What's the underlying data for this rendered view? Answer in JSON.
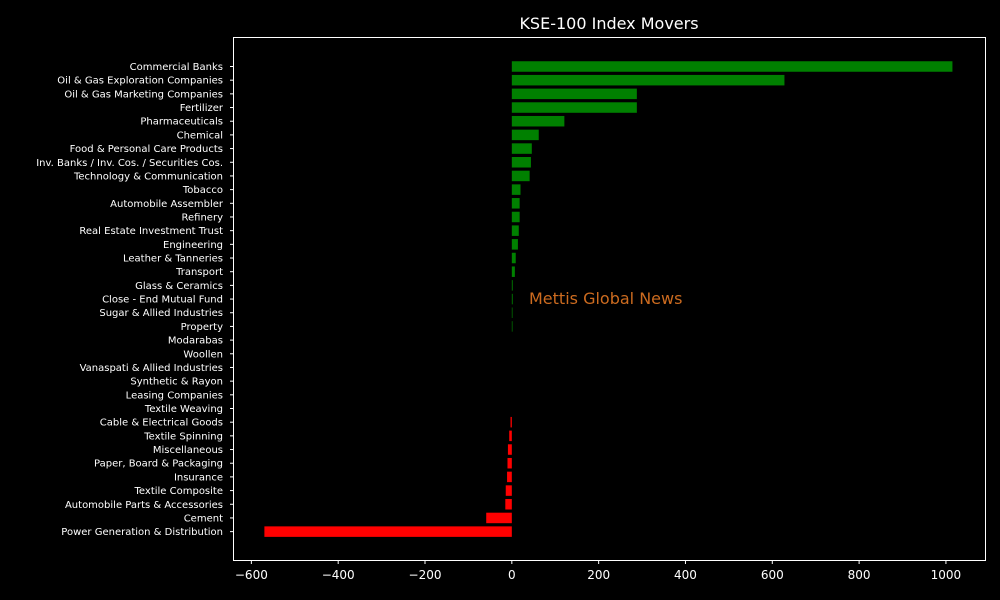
{
  "chart_data": {
    "type": "bar",
    "orientation": "horizontal",
    "title": "KSE-100 Index Movers",
    "xlabel": "",
    "ylabel": "",
    "xlim": [
      -640,
      1090
    ],
    "x_ticks": [
      -600,
      -400,
      -200,
      0,
      200,
      400,
      600,
      800,
      1000
    ],
    "grid": false,
    "positive_color": "#008000",
    "negative_color": "#ff0000",
    "watermark": "Mettis Global News",
    "categories": [
      "Commercial Banks",
      "Oil & Gas Exploration Companies",
      "Oil & Gas Marketing Companies",
      "Fertilizer",
      "Pharmaceuticals",
      "Chemical",
      "Food & Personal Care Products",
      "Inv. Banks / Inv. Cos. / Securities Cos.",
      "Technology & Communication",
      "Tobacco",
      "Automobile Assembler",
      "Refinery",
      "Real Estate Investment Trust",
      "Engineering",
      "Leather & Tanneries",
      "Transport",
      "Glass & Ceramics",
      "Close - End Mutual Fund",
      "Sugar & Allied Industries",
      "Property",
      "Modarabas",
      "Woollen",
      "Vanaspati & Allied Industries",
      "Synthetic & Rayon",
      "Leasing Companies",
      "Textile Weaving",
      "Cable & Electrical Goods",
      "Textile Spinning",
      "Miscellaneous",
      "Paper, Board & Packaging",
      "Insurance",
      "Textile Composite",
      "Automobile Parts & Accessories",
      "Cement",
      "Power Generation & Distribution"
    ],
    "values": [
      1015,
      628,
      288,
      288,
      121,
      62,
      46,
      44,
      41,
      20,
      18,
      18,
      16,
      14,
      9,
      7,
      2,
      2,
      1.5,
      1.5,
      0,
      0,
      0,
      0,
      0,
      0,
      -3,
      -6,
      -9,
      -10,
      -11,
      -14,
      -15,
      -59,
      -570
    ]
  }
}
